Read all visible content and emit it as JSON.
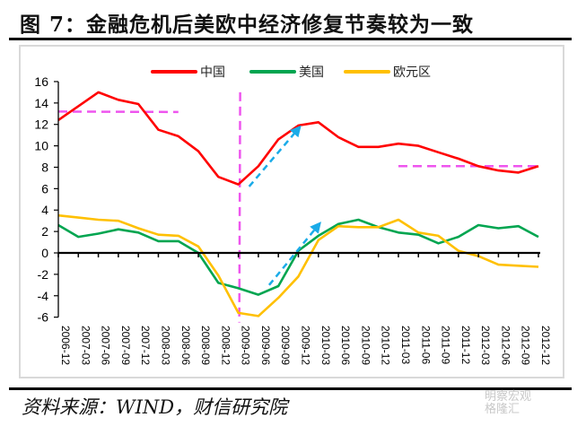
{
  "title": "图 7：金融危机后美欧中经济修复节奏较为一致",
  "source": "资料来源：WIND，财信研究院",
  "watermark": {
    "line1": "明察宏观",
    "line2": "格隆汇"
  },
  "colors": {
    "china": "#ff0000",
    "us": "#00a550",
    "euro": "#ffc000",
    "guide": "#ee55ee",
    "arrow": "#1aabe8",
    "axis": "#000000"
  },
  "chart_data": {
    "type": "line",
    "title": "图 7：金融危机后美欧中经济修复节奏较为一致",
    "xlabel": "",
    "ylabel": "",
    "ylim": [
      -6,
      16
    ],
    "yticks": [
      "16",
      "14",
      "12",
      "10",
      "8",
      "6",
      "4",
      "2",
      "0",
      "-2",
      "-4",
      "-6"
    ],
    "ytick_values": [
      16,
      14,
      12,
      10,
      8,
      6,
      4,
      2,
      0,
      -2,
      -4,
      -6
    ],
    "grid": false,
    "legend_position": "top",
    "categories": [
      "2006-12",
      "2007-03",
      "2007-06",
      "2007-09",
      "2007-12",
      "2008-03",
      "2008-06",
      "2008-09",
      "2008-12",
      "2009-03",
      "2009-06",
      "2009-09",
      "2009-12",
      "2010-03",
      "2010-06",
      "2010-09",
      "2010-12",
      "2011-03",
      "2011-06",
      "2011-09",
      "2011-12",
      "2012-03",
      "2012-06",
      "2012-09",
      "2012-12"
    ],
    "series": [
      {
        "name": "中国",
        "color": "#ff0000",
        "values": [
          12.4,
          13.7,
          15.0,
          14.3,
          13.9,
          11.5,
          10.9,
          9.5,
          7.1,
          6.4,
          8.1,
          10.6,
          11.9,
          12.2,
          10.8,
          9.9,
          9.9,
          10.2,
          10.0,
          9.4,
          8.8,
          8.1,
          7.7,
          7.5,
          8.1
        ]
      },
      {
        "name": "美国",
        "color": "#00a550",
        "values": [
          2.6,
          1.5,
          1.8,
          2.2,
          1.9,
          1.1,
          1.1,
          0.0,
          -2.8,
          -3.3,
          -3.9,
          -3.1,
          0.2,
          1.6,
          2.7,
          3.1,
          2.4,
          1.9,
          1.7,
          0.9,
          1.5,
          2.6,
          2.3,
          2.5,
          1.5
        ]
      },
      {
        "name": "欧元区",
        "color": "#ffc000",
        "values": [
          3.5,
          3.3,
          3.1,
          3.0,
          2.3,
          1.7,
          1.6,
          0.6,
          -2.1,
          -5.6,
          -5.9,
          -4.2,
          -2.2,
          1.2,
          2.5,
          2.4,
          2.4,
          3.1,
          1.9,
          1.6,
          0.2,
          -0.3,
          -1.1,
          -1.2,
          -1.3
        ]
      }
    ],
    "annotations": {
      "pre_crisis_level": {
        "value": 13.2,
        "from": "2006-12",
        "to": "2008-06"
      },
      "post_level": {
        "value": 8.1,
        "from": "2011-03",
        "to": "2012-12"
      },
      "crisis_marker": {
        "at": "2009-03",
        "ymin": -6.5,
        "ymax": 15.0
      },
      "recovery_arrows": [
        {
          "from": {
            "x": "2009-03",
            "y": 6.2
          },
          "to": {
            "x": "2009-12",
            "y": 11.6
          }
        },
        {
          "from": {
            "x": "2009-06",
            "y": -3.0
          },
          "to": {
            "x": "2010-03",
            "y": 2.6
          }
        }
      ]
    }
  }
}
